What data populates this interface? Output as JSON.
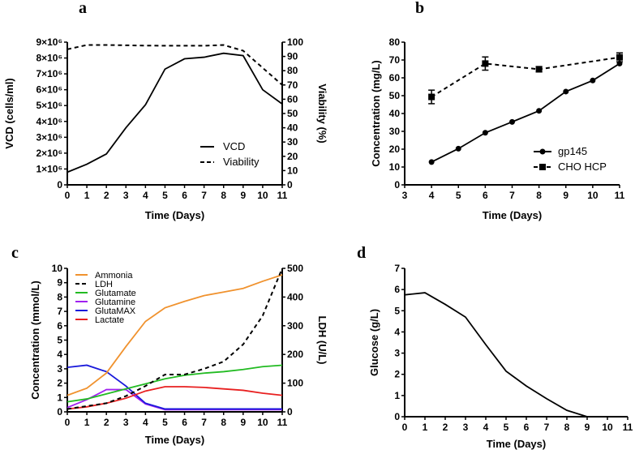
{
  "chart_data": [
    {
      "panel": "a",
      "type": "line",
      "xlabel": "Time (Days)",
      "ylabel": "VCD (cells/ml)",
      "y2label": "Viability (%)",
      "xlim": [
        0,
        11
      ],
      "ylim": [
        0,
        9000000
      ],
      "y2lim": [
        0,
        100
      ],
      "x_ticks": [
        "0",
        "1",
        "2",
        "3",
        "4",
        "5",
        "6",
        "7",
        "8",
        "9",
        "10",
        "11"
      ],
      "y_ticks": [
        "0",
        "1×10⁶",
        "2×10⁶",
        "3×10⁶",
        "4×10⁶",
        "5×10⁶",
        "6×10⁶",
        "7×10⁶",
        "8×10⁶",
        "9×10⁶"
      ],
      "y2_ticks": [
        "0",
        "10",
        "20",
        "30",
        "40",
        "50",
        "60",
        "70",
        "80",
        "90",
        "100"
      ],
      "legend": "bottom-right",
      "grid": false,
      "x": [
        0,
        1,
        2,
        3,
        4,
        5,
        6,
        7,
        8,
        9,
        10,
        11
      ],
      "series": [
        {
          "name": "VCD",
          "axis": "left",
          "style": "solid",
          "color": "#000000",
          "values": [
            800000,
            1300000,
            1950000,
            3600000,
            5050000,
            7300000,
            7950000,
            8050000,
            8300000,
            8150000,
            6000000,
            5100000
          ]
        },
        {
          "name": "Viability",
          "axis": "right",
          "style": "dashed",
          "color": "#000000",
          "values": [
            95,
            98,
            98,
            97.8,
            97.6,
            97.5,
            97.5,
            97.5,
            98,
            94,
            82,
            70
          ]
        }
      ]
    },
    {
      "panel": "b",
      "type": "line",
      "xlabel": "Time (Days)",
      "ylabel": "Concentration (mg/L)",
      "xlim": [
        3,
        11
      ],
      "ylim": [
        0,
        80
      ],
      "x_ticks": [
        "3",
        "4",
        "5",
        "6",
        "7",
        "8",
        "9",
        "10",
        "11"
      ],
      "y_ticks": [
        "0",
        "10",
        "20",
        "30",
        "40",
        "50",
        "60",
        "70",
        "80"
      ],
      "legend": "bottom-right",
      "grid": false,
      "series": [
        {
          "name": "gp145",
          "style": "solid",
          "marker": "circle",
          "color": "#000000",
          "x": [
            4,
            5,
            6,
            7,
            8,
            9,
            10,
            11
          ],
          "values": [
            12.8,
            20.3,
            29.2,
            35.3,
            41.5,
            52.3,
            58.5,
            68
          ]
        },
        {
          "name": "CHO HCP",
          "style": "dashed",
          "marker": "square",
          "color": "#000000",
          "x": [
            4,
            6,
            8,
            11
          ],
          "values": [
            49.3,
            68,
            64.8,
            71.5
          ],
          "error": [
            3.8,
            3.7,
            1.5,
            2.5
          ]
        }
      ]
    },
    {
      "panel": "c",
      "type": "line",
      "xlabel": "Time (Days)",
      "ylabel": "Concentration (mmol/L)",
      "y2label": "LDH (U/L)",
      "xlim": [
        0,
        11
      ],
      "ylim": [
        0,
        10
      ],
      "y2lim": [
        0,
        500
      ],
      "x_ticks": [
        "0",
        "1",
        "2",
        "3",
        "4",
        "5",
        "6",
        "7",
        "8",
        "9",
        "10",
        "11"
      ],
      "y_ticks": [
        "0",
        "1",
        "2",
        "3",
        "4",
        "5",
        "6",
        "7",
        "8",
        "9",
        "10"
      ],
      "y2_ticks": [
        "0",
        "100",
        "200",
        "300",
        "400",
        "500"
      ],
      "legend": "top-left",
      "grid": false,
      "x": [
        0,
        1,
        2,
        3,
        4,
        5,
        6,
        7,
        8,
        9,
        10,
        11
      ],
      "series": [
        {
          "name": "Ammonia",
          "axis": "left",
          "style": "solid",
          "color": "#f0922e",
          "values": [
            1.15,
            1.65,
            2.7,
            4.55,
            6.3,
            7.25,
            7.7,
            8.1,
            8.35,
            8.6,
            9.1,
            9.55
          ]
        },
        {
          "name": "LDH",
          "axis": "right",
          "style": "dashed",
          "color": "#000000",
          "values": [
            10,
            20,
            30,
            55,
            90,
            130,
            130,
            150,
            175,
            235,
            335,
            500
          ]
        },
        {
          "name": "Glutamate",
          "axis": "left",
          "style": "solid",
          "color": "#22bb22",
          "values": [
            0.7,
            0.9,
            1.25,
            1.6,
            1.95,
            2.3,
            2.55,
            2.7,
            2.8,
            2.95,
            3.15,
            3.25
          ]
        },
        {
          "name": "Glutamine",
          "axis": "left",
          "style": "solid",
          "color": "#a020f0",
          "values": [
            0.3,
            0.85,
            1.55,
            1.55,
            0.55,
            0.15,
            0.15,
            0.15,
            0.15,
            0.15,
            0.15,
            0.15
          ]
        },
        {
          "name": "GlutaMAX",
          "axis": "left",
          "style": "solid",
          "color": "#1a1adb",
          "values": [
            3.1,
            3.25,
            2.8,
            1.8,
            0.6,
            0.2,
            0.2,
            0.2,
            0.2,
            0.2,
            0.2,
            0.2
          ]
        },
        {
          "name": "Lactate",
          "axis": "left",
          "style": "solid",
          "color": "#e82020",
          "values": [
            0.2,
            0.35,
            0.6,
            0.95,
            1.45,
            1.75,
            1.75,
            1.7,
            1.6,
            1.5,
            1.3,
            1.15
          ]
        }
      ]
    },
    {
      "panel": "d",
      "type": "line",
      "xlabel": "Time (Days)",
      "ylabel": "Glucose (g/L)",
      "xlim": [
        0,
        11
      ],
      "ylim": [
        0,
        7
      ],
      "x_ticks": [
        "0",
        "1",
        "2",
        "3",
        "4",
        "5",
        "6",
        "7",
        "8",
        "9",
        "10",
        "11"
      ],
      "y_ticks": [
        "0",
        "1",
        "2",
        "3",
        "4",
        "5",
        "6",
        "7"
      ],
      "grid": false,
      "x": [
        0,
        1,
        2,
        3,
        4,
        5,
        6,
        7,
        8,
        9
      ],
      "series": [
        {
          "style": "solid",
          "color": "#000000",
          "values": [
            5.75,
            5.85,
            5.3,
            4.7,
            3.4,
            2.15,
            1.45,
            0.85,
            0.3,
            0
          ]
        }
      ]
    }
  ]
}
